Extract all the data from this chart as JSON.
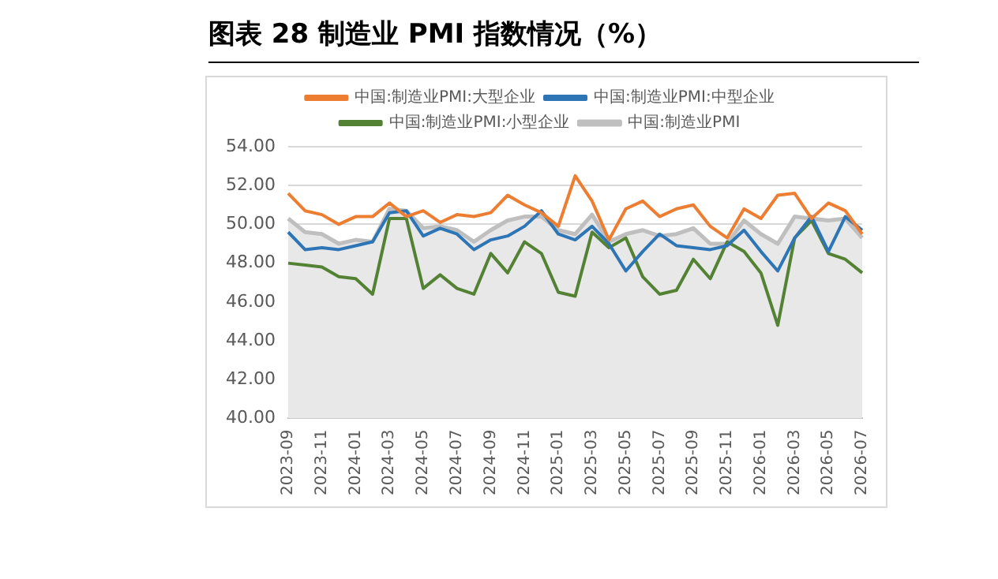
{
  "chart_data": {
    "type": "line",
    "title": "图表 28  制造业 PMI 指数情况（%）",
    "categories": [
      "2023-09",
      null,
      "2023-11",
      null,
      "2024-01",
      null,
      "2024-03",
      null,
      "2024-05",
      null,
      "2024-07",
      null,
      "2024-09",
      null,
      "2024-11",
      null,
      "2025-01",
      null,
      "2025-03",
      null,
      "2025-05",
      null,
      "2025-07",
      null,
      "2025-09",
      null,
      "2025-11",
      null,
      "2026-01",
      null,
      "2026-03",
      null,
      "2026-05",
      null,
      "2026-07"
    ],
    "series": [
      {
        "name": "中国:制造业PMI",
        "type": "area",
        "color": "#bfbfbf",
        "values": [
          50.3,
          49.6,
          49.5,
          49.0,
          49.2,
          49.1,
          50.8,
          50.7,
          49.8,
          49.9,
          49.7,
          49.1,
          49.7,
          50.2,
          50.4,
          50.4,
          49.7,
          49.5,
          50.5,
          49.1,
          49.5,
          49.7,
          49.4,
          49.5,
          49.8,
          49.0,
          49.0,
          50.2,
          49.5,
          49.0,
          50.4,
          50.3,
          50.2,
          50.3,
          49.3
        ]
      },
      {
        "name": "中国:制造业PMI:大型企业",
        "color": "#ed7d31",
        "values": [
          51.6,
          50.7,
          50.5,
          50.0,
          50.4,
          50.4,
          51.1,
          50.4,
          50.7,
          50.1,
          50.5,
          50.4,
          50.6,
          51.5,
          51.0,
          50.6,
          49.9,
          52.5,
          51.2,
          49.2,
          50.8,
          51.2,
          50.4,
          50.8,
          51.0,
          49.9,
          49.3,
          50.8,
          50.3,
          51.5,
          51.6,
          50.3,
          51.1,
          50.7,
          49.5
        ]
      },
      {
        "name": "中国:制造业PMI:中型企业",
        "color": "#2e75b6",
        "values": [
          49.6,
          48.7,
          48.8,
          48.7,
          48.9,
          49.1,
          50.6,
          50.7,
          49.4,
          49.8,
          49.5,
          48.7,
          49.2,
          49.4,
          49.9,
          50.7,
          49.5,
          49.2,
          49.9,
          49.0,
          47.6,
          48.6,
          49.5,
          48.9,
          48.8,
          48.7,
          48.9,
          49.7,
          48.6,
          47.6,
          49.3,
          50.4,
          48.6,
          50.4,
          49.7
        ]
      },
      {
        "name": "中国:制造业PMI:小型企业",
        "color": "#548235",
        "values": [
          48.0,
          47.9,
          47.8,
          47.3,
          47.2,
          46.4,
          50.3,
          50.3,
          46.7,
          47.4,
          46.7,
          46.4,
          48.5,
          47.5,
          49.1,
          48.5,
          46.5,
          46.3,
          49.6,
          48.8,
          49.3,
          47.3,
          46.4,
          46.6,
          48.2,
          47.2,
          49.1,
          48.6,
          47.5,
          44.8,
          49.3,
          50.2,
          48.5,
          48.2,
          47.5
        ]
      }
    ],
    "ylim": [
      40,
      54
    ],
    "yticks": [
      {
        "value": 40,
        "label": "40.00"
      },
      {
        "value": 42,
        "label": "42.00"
      },
      {
        "value": 44,
        "label": "44.00"
      },
      {
        "value": 46,
        "label": "46.00"
      },
      {
        "value": 48,
        "label": "48.00"
      },
      {
        "value": 50,
        "label": "50.00"
      },
      {
        "value": 52,
        "label": "52.00"
      },
      {
        "value": 54,
        "label": "54.00"
      }
    ],
    "grid": "y",
    "legend": "top",
    "marker": "none",
    "line_style": "solid"
  }
}
